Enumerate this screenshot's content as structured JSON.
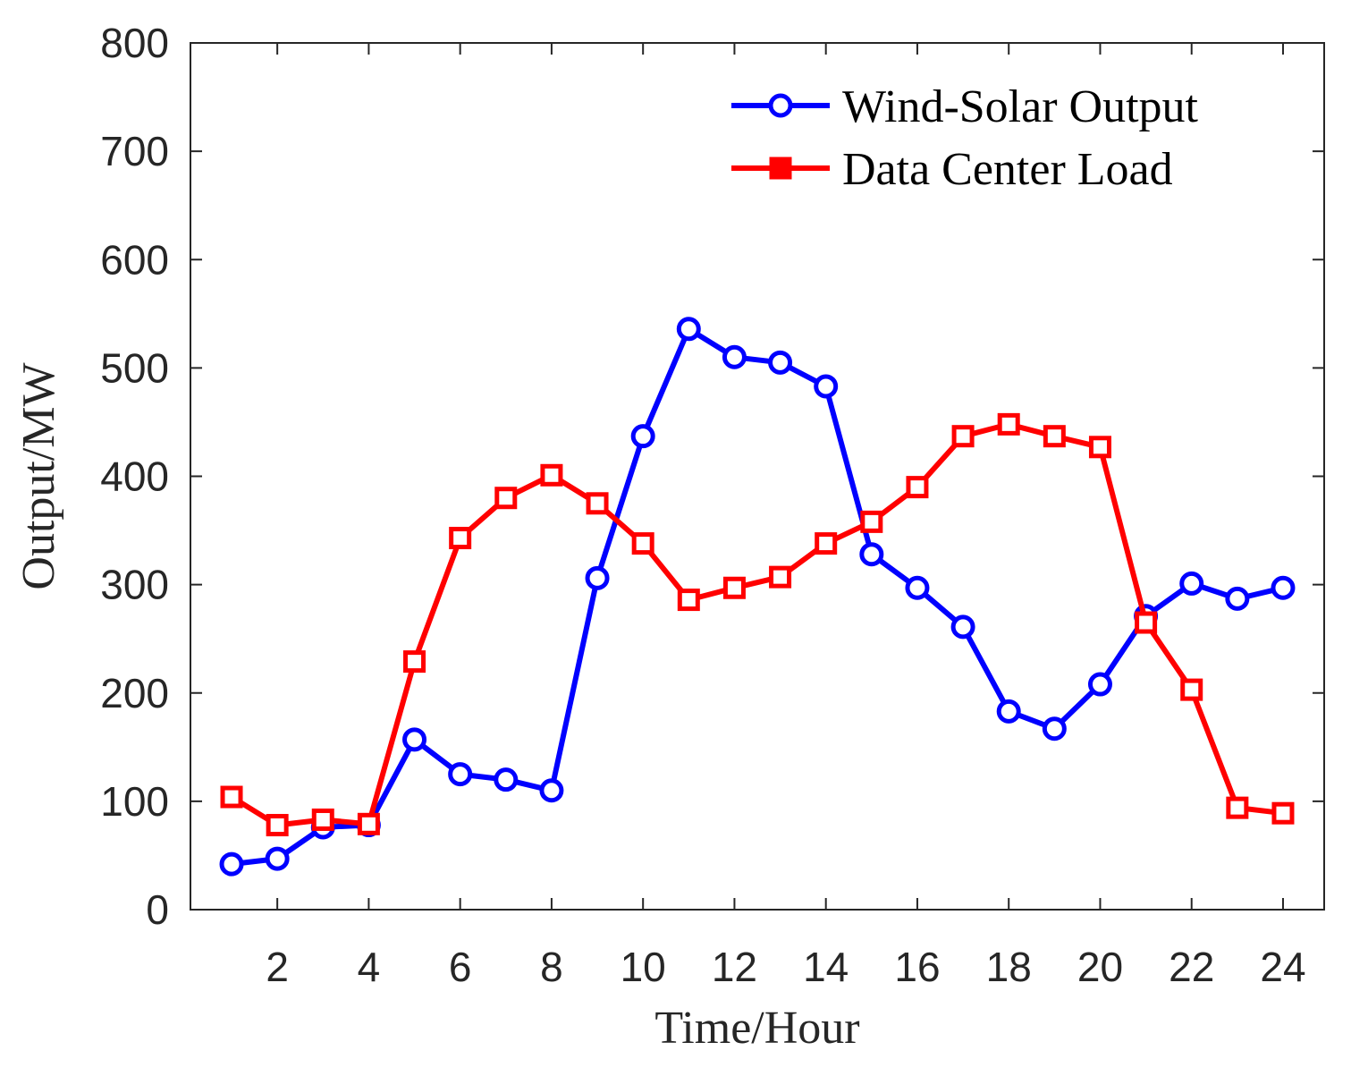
{
  "chart_data": {
    "type": "line",
    "title": "",
    "xlabel": "Time/Hour",
    "ylabel": "Output/MW",
    "xlim": [
      0.1,
      24.9
    ],
    "ylim": [
      0,
      800
    ],
    "xticks": [
      2,
      4,
      6,
      8,
      10,
      12,
      14,
      16,
      18,
      20,
      22,
      24
    ],
    "yticks": [
      0,
      100,
      200,
      300,
      400,
      500,
      600,
      700,
      800
    ],
    "grid": false,
    "legend_position": "top-right",
    "x": [
      1,
      2,
      3,
      4,
      5,
      6,
      7,
      8,
      9,
      10,
      11,
      12,
      13,
      14,
      15,
      16,
      17,
      18,
      19,
      20,
      21,
      22,
      23,
      24
    ],
    "series": [
      {
        "name": "Wind-Solar Output",
        "color": "#0000ff",
        "marker": "circle",
        "values": [
          42,
          47,
          76,
          78,
          157,
          125,
          120,
          110,
          306,
          437,
          536,
          510,
          505,
          483,
          328,
          297,
          261,
          183,
          167,
          208,
          271,
          301,
          287,
          297
        ]
      },
      {
        "name": "Data Center Load",
        "color": "#ff0000",
        "marker": "square",
        "values": [
          104,
          78,
          83,
          79,
          229,
          343,
          380,
          401,
          375,
          338,
          286,
          297,
          307,
          338,
          358,
          390,
          437,
          448,
          437,
          427,
          265,
          203,
          94,
          89
        ]
      }
    ]
  }
}
